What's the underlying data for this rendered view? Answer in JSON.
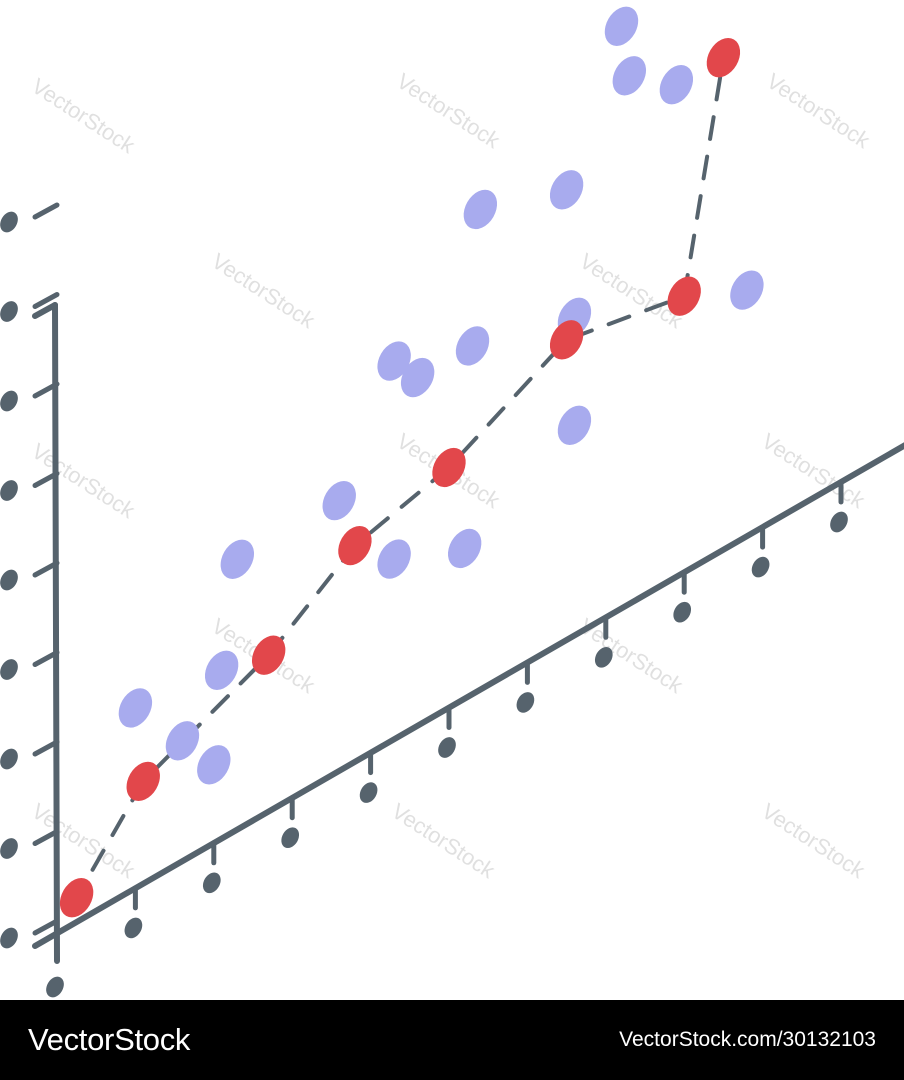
{
  "footer": {
    "brand": "VectorStock",
    "image_id": "VectorStock.com/30132103"
  },
  "watermark": {
    "text": "VectorStock"
  },
  "colors": {
    "axis": "#56636d",
    "scatter_point": "#a8abee",
    "trend_point": "#e2474b",
    "trend_line": "#56636d",
    "footer_bg": "#000000",
    "footer_text": "#ffffff"
  },
  "chart_data": {
    "type": "scatter",
    "title": "",
    "xlabel": "",
    "ylabel": "",
    "style": "isometric",
    "x_ticks": 10,
    "y_ticks": 8,
    "legend": "none",
    "grid": false,
    "xlim": [
      0,
      10
    ],
    "ylim": [
      0,
      10
    ],
    "series": [
      {
        "kind": "scatter",
        "color": "#a8abee",
        "points": [
          [
            1.0,
            3.0
          ],
          [
            2.0,
            1.3
          ],
          [
            1.6,
            2.0
          ],
          [
            2.1,
            2.8
          ],
          [
            2.3,
            4.5
          ],
          [
            3.6,
            4.5
          ],
          [
            4.3,
            3.0
          ],
          [
            5.2,
            2.5
          ],
          [
            4.3,
            6.3
          ],
          [
            4.6,
            5.8
          ],
          [
            5.3,
            5.8
          ],
          [
            6.6,
            3.5
          ],
          [
            5.4,
            8.0
          ],
          [
            6.5,
            7.5
          ],
          [
            6.6,
            5.3
          ],
          [
            7.2,
            9.7
          ],
          [
            7.3,
            8.8
          ],
          [
            7.9,
            8.2
          ],
          [
            8.8,
            4.1
          ]
        ]
      },
      {
        "kind": "line",
        "style": "dashed",
        "color": "#e2474b",
        "points": [
          [
            0.25,
            0.4
          ],
          [
            1.1,
            1.7
          ],
          [
            2.7,
            2.6
          ],
          [
            3.8,
            3.6
          ],
          [
            5.0,
            4.0
          ],
          [
            6.5,
            5.0
          ],
          [
            8.0,
            4.6
          ],
          [
            8.5,
            8.2
          ]
        ]
      }
    ]
  }
}
